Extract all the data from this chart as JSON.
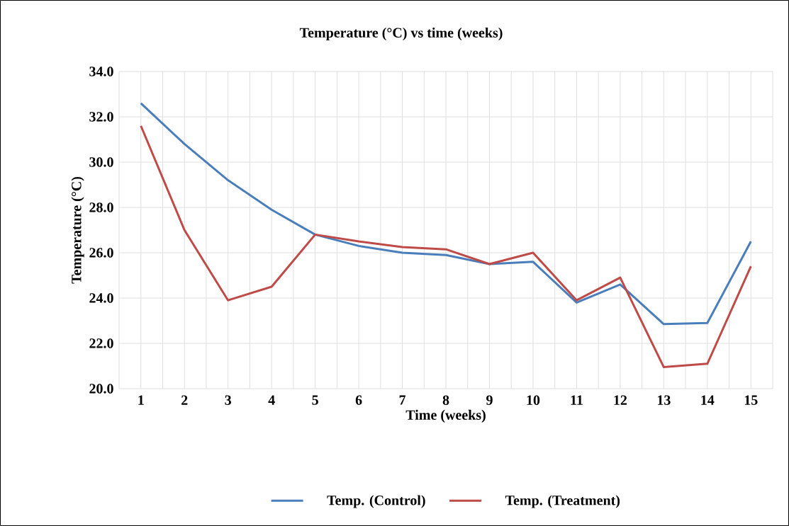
{
  "chart_data": {
    "type": "line",
    "title": "Temperature (°C) vs time (weeks)",
    "xlabel": "Time (weeks)",
    "ylabel": "Temperature (°C)",
    "categories": [
      "1",
      "2",
      "3",
      "4",
      "5",
      "6",
      "7",
      "8",
      "9",
      "10",
      "11",
      "12",
      "13",
      "14",
      "15"
    ],
    "series": [
      {
        "name": "Temp. (Control)",
        "color": "#4a7ebb",
        "values": [
          32.6,
          30.8,
          29.2,
          27.9,
          26.8,
          26.3,
          26.0,
          25.9,
          25.5,
          25.6,
          23.8,
          24.6,
          22.85,
          22.9,
          26.5
        ]
      },
      {
        "name": "Temp. (Treatment)",
        "color": "#be4b48",
        "values": [
          31.6,
          27.0,
          23.9,
          24.5,
          26.8,
          26.5,
          26.25,
          26.15,
          25.5,
          26.0,
          23.9,
          24.9,
          20.95,
          21.1,
          25.4
        ]
      }
    ],
    "ylim": [
      20,
      34
    ],
    "yticks": [
      {
        "value": 20,
        "label": "20.0"
      },
      {
        "value": 22,
        "label": "22.0"
      },
      {
        "value": 24,
        "label": "24.0"
      },
      {
        "value": 26,
        "label": "26.0"
      },
      {
        "value": 28,
        "label": "28.0"
      },
      {
        "value": 30,
        "label": "30.0"
      },
      {
        "value": 32,
        "label": "32.0"
      },
      {
        "value": 34,
        "label": "34.0"
      }
    ],
    "grid": true,
    "legend": "bottom",
    "marker": "none",
    "line_style": "solid"
  }
}
